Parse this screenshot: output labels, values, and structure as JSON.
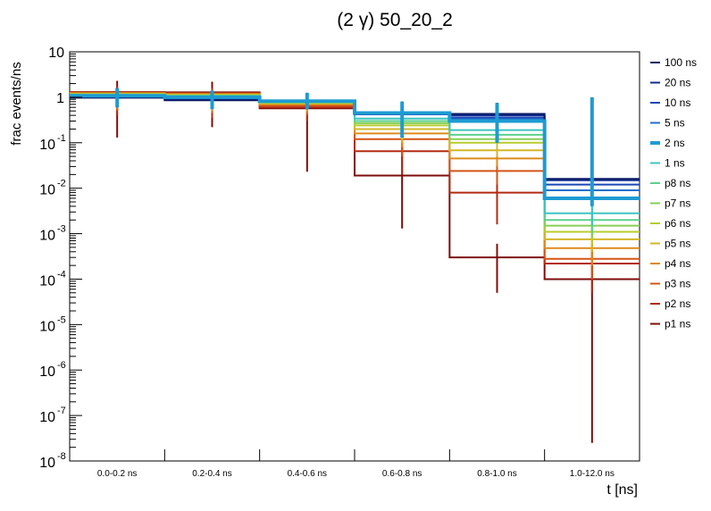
{
  "chart_data": {
    "type": "line",
    "title": "(2 γ) 50_20_2",
    "xlabel": "t [ns]",
    "ylabel": "frac events/ns",
    "yscale": "log",
    "ylim": [
      1e-08,
      10
    ],
    "grid": false,
    "legend_position": "right",
    "categories": [
      "0.0-0.2 ns",
      "0.2-0.4 ns",
      "0.4-0.6 ns",
      "0.6-0.8 ns",
      "0.8-1.0 ns",
      "1.0-12.0 ns"
    ],
    "y_ticks": [
      {
        "exp": "-8"
      },
      {
        "exp": "-7"
      },
      {
        "exp": "-6"
      },
      {
        "exp": "-5"
      },
      {
        "exp": "-4"
      },
      {
        "exp": "-3"
      },
      {
        "exp": "-2"
      },
      {
        "exp": "-1"
      },
      {
        "plain": "1"
      },
      {
        "plain": "10"
      }
    ],
    "series": [
      {
        "name": "100 ns",
        "color": "#0a1a66",
        "highlight": false,
        "values": [
          0.98,
          0.86,
          0.83,
          0.44,
          0.43,
          0.016
        ],
        "err_low": [
          0.6,
          0.55,
          0.55,
          0.13,
          0.1,
          0.009
        ],
        "err_high": [
          1.6,
          1.4,
          1.25,
          0.8,
          0.75,
          0.022
        ]
      },
      {
        "name": "20 ns",
        "color": "#122d8f",
        "highlight": false,
        "values": [
          1.0,
          0.9,
          0.82,
          0.43,
          0.4,
          0.015
        ],
        "err_low": [
          0.6,
          0.55,
          0.55,
          0.13,
          0.1,
          0.009
        ],
        "err_high": [
          1.6,
          1.4,
          1.25,
          0.8,
          0.75,
          0.02
        ]
      },
      {
        "name": "10 ns",
        "color": "#1d47b5",
        "highlight": false,
        "values": [
          1.02,
          0.93,
          0.82,
          0.42,
          0.36,
          0.012
        ],
        "err_low": [
          0.6,
          0.55,
          0.55,
          0.13,
          0.1,
          0.008
        ],
        "err_high": [
          1.6,
          1.4,
          1.25,
          0.8,
          0.75,
          0.018
        ]
      },
      {
        "name": "5 ns",
        "color": "#1f6fcc",
        "highlight": false,
        "values": [
          1.05,
          0.97,
          0.82,
          0.42,
          0.33,
          0.009
        ],
        "err_low": [
          0.6,
          0.55,
          0.55,
          0.13,
          0.1,
          0.006
        ],
        "err_high": [
          1.6,
          1.4,
          1.25,
          0.8,
          0.75,
          0.014
        ]
      },
      {
        "name": "2 ns",
        "color": "#1e9bd2",
        "highlight": true,
        "values": [
          1.08,
          1.0,
          0.82,
          0.45,
          0.3,
          0.006
        ],
        "err_low": [
          0.6,
          0.55,
          0.55,
          0.13,
          0.1,
          0.004
        ],
        "err_high": [
          1.6,
          1.4,
          1.25,
          0.8,
          0.75,
          1.0
        ]
      },
      {
        "name": "1 ns",
        "color": "#3cc4c0",
        "highlight": false,
        "values": [
          1.12,
          1.05,
          0.8,
          0.34,
          0.19,
          0.0028
        ],
        "err_low": [
          0.6,
          0.55,
          0.55,
          0.13,
          0.1,
          0.0015
        ],
        "err_high": [
          1.6,
          1.4,
          1.25,
          0.8,
          0.75,
          0.005
        ]
      },
      {
        "name": "p8 ns",
        "color": "#5cd08e",
        "highlight": false,
        "values": [
          1.13,
          1.07,
          0.79,
          0.3,
          0.15,
          0.002
        ],
        "err_low": [
          0.6,
          0.55,
          0.55,
          0.13,
          0.1,
          0.001
        ],
        "err_high": [
          1.6,
          1.4,
          1.25,
          0.8,
          0.75,
          0.004
        ]
      },
      {
        "name": "p7 ns",
        "color": "#88cf55",
        "highlight": false,
        "values": [
          1.15,
          1.09,
          0.77,
          0.27,
          0.12,
          0.0015
        ],
        "err_low": [
          0.6,
          0.55,
          0.55,
          0.13,
          0.1,
          0.0008
        ],
        "err_high": [
          1.6,
          1.4,
          1.25,
          0.8,
          0.75,
          0.003
        ]
      },
      {
        "name": "p6 ns",
        "color": "#b7cc2e",
        "highlight": false,
        "values": [
          1.17,
          1.11,
          0.75,
          0.24,
          0.1,
          0.0011
        ],
        "err_low": [
          0.6,
          0.55,
          0.55,
          0.12,
          0.08,
          0.0006
        ],
        "err_high": [
          1.6,
          1.4,
          1.25,
          0.75,
          0.7,
          0.002
        ]
      },
      {
        "name": "p5 ns",
        "color": "#d3b629",
        "highlight": false,
        "values": [
          1.2,
          1.14,
          0.73,
          0.2,
          0.068,
          0.00075
        ],
        "err_low": [
          0.6,
          0.55,
          0.5,
          0.1,
          0.05,
          0.0004
        ],
        "err_high": [
          1.6,
          1.4,
          1.25,
          0.7,
          0.6,
          0.0015
        ]
      },
      {
        "name": "p4 ns",
        "color": "#de8a1c",
        "highlight": false,
        "values": [
          1.22,
          1.17,
          0.7,
          0.16,
          0.045,
          0.00048
        ],
        "err_low": [
          0.55,
          0.5,
          0.45,
          0.08,
          0.03,
          0.0002
        ],
        "err_high": [
          1.6,
          1.4,
          1.2,
          0.6,
          0.5,
          0.001
        ]
      },
      {
        "name": "p3 ns",
        "color": "#d55415",
        "highlight": false,
        "values": [
          1.25,
          1.2,
          0.66,
          0.12,
          0.024,
          0.00028
        ],
        "err_low": [
          0.5,
          0.45,
          0.4,
          0.05,
          0.012,
          0.0001
        ],
        "err_high": [
          1.6,
          1.4,
          1.2,
          0.5,
          0.3,
          0.0006
        ]
      },
      {
        "name": "p2 ns",
        "color": "#b22a10",
        "highlight": false,
        "values": [
          1.28,
          1.24,
          0.6,
          0.065,
          0.008,
          0.00022
        ],
        "err_low": [
          0.4,
          0.35,
          0.3,
          0.02,
          0.0016,
          5e-05
        ],
        "err_high": [
          1.8,
          1.6,
          1.1,
          0.3,
          0.05,
          0.0005
        ]
      },
      {
        "name": "p1 ns",
        "color": "#7e0d0a",
        "highlight": false,
        "values": [
          1.3,
          1.28,
          0.57,
          0.019,
          0.0003,
          0.0001
        ],
        "err_low": [
          0.13,
          0.22,
          0.023,
          0.0013,
          5e-05,
          2.5e-08
        ],
        "err_high": [
          2.3,
          2.2,
          1.1,
          0.17,
          0.0006,
          0.0004
        ]
      }
    ]
  }
}
